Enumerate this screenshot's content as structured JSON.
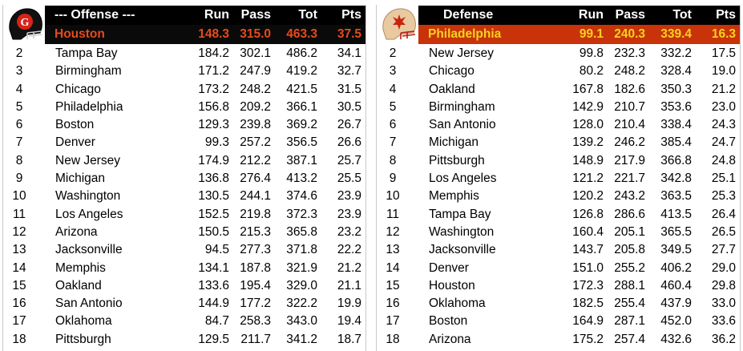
{
  "offense": {
    "header": {
      "title": "--- Offense ---",
      "run": "Run",
      "pass": "Pass",
      "tot": "Tot",
      "pts": "Pts"
    },
    "top": {
      "rank": "1",
      "team": "Houston",
      "run": "148.3",
      "pass": "315.0",
      "tot": "463.3",
      "pts": "37.5"
    },
    "rows": [
      {
        "rank": "2",
        "team": "Tampa Bay",
        "run": "184.2",
        "pass": "302.1",
        "tot": "486.2",
        "pts": "34.1"
      },
      {
        "rank": "3",
        "team": "Birmingham",
        "run": "171.2",
        "pass": "247.9",
        "tot": "419.2",
        "pts": "32.7"
      },
      {
        "rank": "4",
        "team": "Chicago",
        "run": "173.2",
        "pass": "248.2",
        "tot": "421.5",
        "pts": "31.5"
      },
      {
        "rank": "5",
        "team": "Philadelphia",
        "run": "156.8",
        "pass": "209.2",
        "tot": "366.1",
        "pts": "30.5"
      },
      {
        "rank": "6",
        "team": "Boston",
        "run": "129.3",
        "pass": "239.8",
        "tot": "369.2",
        "pts": "26.7"
      },
      {
        "rank": "7",
        "team": "Denver",
        "run": "99.3",
        "pass": "257.2",
        "tot": "356.5",
        "pts": "26.6"
      },
      {
        "rank": "8",
        "team": "New Jersey",
        "run": "174.9",
        "pass": "212.2",
        "tot": "387.1",
        "pts": "25.7"
      },
      {
        "rank": "9",
        "team": "Michigan",
        "run": "136.8",
        "pass": "276.4",
        "tot": "413.2",
        "pts": "25.5"
      },
      {
        "rank": "10",
        "team": "Washington",
        "run": "130.5",
        "pass": "244.1",
        "tot": "374.6",
        "pts": "23.9"
      },
      {
        "rank": "11",
        "team": "Los Angeles",
        "run": "152.5",
        "pass": "219.8",
        "tot": "372.3",
        "pts": "23.9"
      },
      {
        "rank": "12",
        "team": "Arizona",
        "run": "150.5",
        "pass": "215.3",
        "tot": "365.8",
        "pts": "23.2"
      },
      {
        "rank": "13",
        "team": "Jacksonville",
        "run": "94.5",
        "pass": "277.3",
        "tot": "371.8",
        "pts": "22.2"
      },
      {
        "rank": "14",
        "team": "Memphis",
        "run": "134.1",
        "pass": "187.8",
        "tot": "321.9",
        "pts": "21.2"
      },
      {
        "rank": "15",
        "team": "Oakland",
        "run": "133.6",
        "pass": "195.4",
        "tot": "329.0",
        "pts": "21.1"
      },
      {
        "rank": "16",
        "team": "San Antonio",
        "run": "144.9",
        "pass": "177.2",
        "tot": "322.2",
        "pts": "19.9"
      },
      {
        "rank": "17",
        "team": "Oklahoma",
        "run": "84.7",
        "pass": "258.3",
        "tot": "343.0",
        "pts": "19.4"
      },
      {
        "rank": "18",
        "team": "Pittsburgh",
        "run": "129.5",
        "pass": "211.7",
        "tot": "341.2",
        "pts": "18.7"
      }
    ]
  },
  "defense": {
    "header": {
      "title": "Defense",
      "run": "Run",
      "pass": "Pass",
      "tot": "Tot",
      "pts": "Pts"
    },
    "top": {
      "rank": "1",
      "team": "Philadelphia",
      "run": "99.1",
      "pass": "240.3",
      "tot": "339.4",
      "pts": "16.3"
    },
    "rows": [
      {
        "rank": "2",
        "team": "New Jersey",
        "run": "99.8",
        "pass": "232.3",
        "tot": "332.2",
        "pts": "17.5"
      },
      {
        "rank": "3",
        "team": "Chicago",
        "run": "80.2",
        "pass": "248.2",
        "tot": "328.4",
        "pts": "19.0"
      },
      {
        "rank": "4",
        "team": "Oakland",
        "run": "167.8",
        "pass": "182.6",
        "tot": "350.3",
        "pts": "21.2"
      },
      {
        "rank": "5",
        "team": "Birmingham",
        "run": "142.9",
        "pass": "210.7",
        "tot": "353.6",
        "pts": "23.0"
      },
      {
        "rank": "6",
        "team": "San Antonio",
        "run": "128.0",
        "pass": "210.4",
        "tot": "338.4",
        "pts": "24.3"
      },
      {
        "rank": "7",
        "team": "Michigan",
        "run": "139.2",
        "pass": "246.2",
        "tot": "385.4",
        "pts": "24.7"
      },
      {
        "rank": "8",
        "team": "Pittsburgh",
        "run": "148.9",
        "pass": "217.9",
        "tot": "366.8",
        "pts": "24.8"
      },
      {
        "rank": "9",
        "team": "Los Angeles",
        "run": "121.2",
        "pass": "221.7",
        "tot": "342.8",
        "pts": "25.1"
      },
      {
        "rank": "10",
        "team": "Memphis",
        "run": "120.2",
        "pass": "243.2",
        "tot": "363.5",
        "pts": "25.3"
      },
      {
        "rank": "11",
        "team": "Tampa Bay",
        "run": "126.8",
        "pass": "286.6",
        "tot": "413.5",
        "pts": "26.4"
      },
      {
        "rank": "12",
        "team": "Washington",
        "run": "160.4",
        "pass": "205.1",
        "tot": "365.5",
        "pts": "26.5"
      },
      {
        "rank": "13",
        "team": "Jacksonville",
        "run": "143.7",
        "pass": "205.8",
        "tot": "349.5",
        "pts": "27.7"
      },
      {
        "rank": "14",
        "team": "Denver",
        "run": "151.0",
        "pass": "255.2",
        "tot": "406.2",
        "pts": "29.0"
      },
      {
        "rank": "15",
        "team": "Houston",
        "run": "172.3",
        "pass": "288.1",
        "tot": "460.4",
        "pts": "29.8"
      },
      {
        "rank": "16",
        "team": "Oklahoma",
        "run": "182.5",
        "pass": "255.4",
        "tot": "437.9",
        "pts": "33.0"
      },
      {
        "rank": "17",
        "team": "Boston",
        "run": "164.9",
        "pass": "287.1",
        "tot": "452.0",
        "pts": "33.6"
      },
      {
        "rank": "18",
        "team": "Arizona",
        "run": "175.2",
        "pass": "257.4",
        "tot": "432.6",
        "pts": "36.2"
      }
    ]
  },
  "icons": {
    "offense_top": "houston-helmet-icon",
    "defense_top": "philadelphia-helmet-icon"
  },
  "colors": {
    "header_bg": "#000000",
    "header_text": "#ffffff",
    "offense_top_bg": "#0a0a0a",
    "offense_top_text": "#e84a1c",
    "defense_top_bg": "#c8330a",
    "defense_top_text": "#f7d21e"
  }
}
